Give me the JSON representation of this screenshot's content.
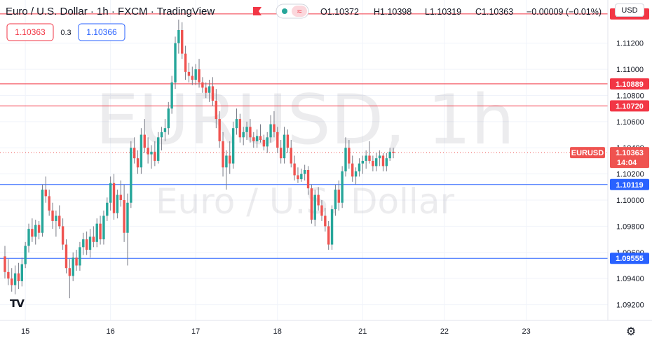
{
  "header": {
    "symbol_title": "Euro / U.S. Dollar · 1h · FXCM · TradingView",
    "ohlc": {
      "open": "O1.10372",
      "high": "H1.10398",
      "low": "L1.10319",
      "close": "C1.10363",
      "change": "−0.00009 (−0.01%)"
    },
    "sell_price": "1.10363",
    "spread": "0.3",
    "buy_price": "1.10366",
    "currency": "USD",
    "indicator_icons": [
      "dot-icon",
      "wave-icon"
    ]
  },
  "watermark": {
    "symbol": "EURUSD, 1h",
    "description": "Euro / U.S. Dollar"
  },
  "colors": {
    "bull": "#26a69a",
    "bear": "#ef5350",
    "wick": "#787b86",
    "resistance": "#f23645",
    "support": "#2962ff",
    "last_price": "#ef5350",
    "grid": "#f0f3fa"
  },
  "chart_data": {
    "type": "candlestick",
    "symbol": "EURUSD",
    "timeframe": "1h",
    "ylim": [
      1.0908,
      1.1153
    ],
    "y_ticks": [
      1.092,
      1.094,
      1.096,
      1.098,
      1.1,
      1.102,
      1.104,
      1.106,
      1.108,
      1.11,
      1.112
    ],
    "y_tick_labels": [
      "1.09200",
      "1.09400",
      "1.09600",
      "1.09800",
      "1.10000",
      "1.10200",
      "1.10400",
      "1.10600",
      "1.10800",
      "1.11000",
      "1.11200"
    ],
    "x_labels": [
      "15",
      "16",
      "17",
      "18",
      "21",
      "22",
      "23"
    ],
    "x_label_bar_index": [
      6,
      31,
      56,
      80,
      105,
      129,
      153
    ],
    "horizontal_lines": [
      {
        "value": 1.11424,
        "label": "1.11424",
        "kind": "resistance"
      },
      {
        "value": 1.10889,
        "label": "1.10889",
        "kind": "resistance"
      },
      {
        "value": 1.1072,
        "label": "1.10720",
        "kind": "resistance"
      },
      {
        "value": 1.10119,
        "label": "1.10119",
        "kind": "support"
      },
      {
        "value": 1.09555,
        "label": "1.09555",
        "kind": "support"
      }
    ],
    "last_price": {
      "value": 1.10363,
      "label": "1.10363",
      "symbol": "EURUSD",
      "countdown": "14:04"
    },
    "candles": [
      [
        1.0957,
        1.0965,
        1.094,
        1.0945
      ],
      [
        1.0945,
        1.0955,
        1.0935,
        1.094
      ],
      [
        1.094,
        1.0948,
        1.093,
        1.0935
      ],
      [
        1.0935,
        1.095,
        1.0928,
        1.0944
      ],
      [
        1.0944,
        1.0952,
        1.0932,
        1.0938
      ],
      [
        1.0938,
        1.0956,
        1.0934,
        1.0951
      ],
      [
        1.0951,
        1.0968,
        1.0948,
        1.0965
      ],
      [
        1.0965,
        1.0982,
        1.096,
        1.0978
      ],
      [
        1.0978,
        1.0986,
        1.0968,
        1.0972
      ],
      [
        1.0972,
        1.0985,
        1.0966,
        1.0981
      ],
      [
        1.0981,
        1.0984,
        1.097,
        1.0975
      ],
      [
        1.0975,
        1.1012,
        1.0972,
        1.1008
      ],
      [
        1.1008,
        1.1018,
        1.0998,
        1.1003
      ],
      [
        1.1003,
        1.1008,
        1.0988,
        1.0992
      ],
      [
        1.0992,
        1.0998,
        1.0978,
        1.0984
      ],
      [
        1.0984,
        1.0992,
        1.0972,
        1.0988
      ],
      [
        1.0988,
        1.0996,
        1.0978,
        1.098
      ],
      [
        1.098,
        1.0986,
        1.0962,
        1.0966
      ],
      [
        1.0966,
        1.097,
        1.0944,
        1.0948
      ],
      [
        1.0948,
        1.0955,
        1.0925,
        1.0942
      ],
      [
        1.0942,
        1.096,
        1.0938,
        1.0956
      ],
      [
        1.0956,
        1.0962,
        1.0946,
        1.095
      ],
      [
        1.095,
        1.0968,
        1.0946,
        1.0964
      ],
      [
        1.0964,
        1.0975,
        1.0958,
        1.097
      ],
      [
        1.097,
        1.0976,
        1.0958,
        1.0962
      ],
      [
        1.0962,
        1.0978,
        1.0956,
        1.0972
      ],
      [
        1.0972,
        1.098,
        1.0964,
        1.0968
      ],
      [
        1.0968,
        1.0986,
        1.0964,
        1.0982
      ],
      [
        1.0982,
        1.0988,
        1.0966,
        1.097
      ],
      [
        1.097,
        1.0992,
        1.0966,
        1.0988
      ],
      [
        1.0988,
        1.1002,
        1.0984,
        1.0998
      ],
      [
        1.0998,
        1.1018,
        1.0992,
        1.1013
      ],
      [
        1.1013,
        1.102,
        1.0985,
        1.099
      ],
      [
        1.099,
        1.1008,
        1.0986,
        1.1004
      ],
      [
        1.1004,
        1.1015,
        1.0995,
        1.1
      ],
      [
        1.1,
        1.1012,
        1.0968,
        1.0975
      ],
      [
        1.0975,
        1.1005,
        1.095,
        1.0998
      ],
      [
        1.0998,
        1.1045,
        1.0994,
        1.104
      ],
      [
        1.104,
        1.1048,
        1.1028,
        1.1032
      ],
      [
        1.1032,
        1.1038,
        1.102,
        1.1025
      ],
      [
        1.1025,
        1.1055,
        1.102,
        1.105
      ],
      [
        1.105,
        1.1062,
        1.1036,
        1.104
      ],
      [
        1.104,
        1.1048,
        1.1028,
        1.1035
      ],
      [
        1.1035,
        1.1042,
        1.1024,
        1.1037
      ],
      [
        1.1037,
        1.1045,
        1.1026,
        1.103
      ],
      [
        1.103,
        1.1052,
        1.1028,
        1.1048
      ],
      [
        1.1048,
        1.1056,
        1.1038,
        1.1052
      ],
      [
        1.1052,
        1.1062,
        1.1045,
        1.1055
      ],
      [
        1.1055,
        1.1075,
        1.105,
        1.107
      ],
      [
        1.107,
        1.1095,
        1.1066,
        1.109
      ],
      [
        1.109,
        1.1125,
        1.1085,
        1.112
      ],
      [
        1.112,
        1.1138,
        1.1112,
        1.113
      ],
      [
        1.113,
        1.1136,
        1.1108,
        1.1112
      ],
      [
        1.1112,
        1.1118,
        1.1092,
        1.1098
      ],
      [
        1.1098,
        1.1105,
        1.109,
        1.1095
      ],
      [
        1.1095,
        1.1102,
        1.1088,
        1.1092
      ],
      [
        1.1092,
        1.1104,
        1.1088,
        1.11
      ],
      [
        1.11,
        1.1108,
        1.1086,
        1.109
      ],
      [
        1.109,
        1.1094,
        1.1082,
        1.1086
      ],
      [
        1.1086,
        1.109,
        1.1078,
        1.1082
      ],
      [
        1.1082,
        1.1092,
        1.1075,
        1.1087
      ],
      [
        1.1087,
        1.1094,
        1.1072,
        1.1076
      ],
      [
        1.1076,
        1.1085,
        1.1055,
        1.1062
      ],
      [
        1.1062,
        1.1068,
        1.104,
        1.1045
      ],
      [
        1.1045,
        1.1052,
        1.1018,
        1.1025
      ],
      [
        1.1025,
        1.1038,
        1.1008,
        1.1034
      ],
      [
        1.1034,
        1.1045,
        1.102,
        1.1028
      ],
      [
        1.1028,
        1.106,
        1.1024,
        1.1055
      ],
      [
        1.1055,
        1.107,
        1.105,
        1.1062
      ],
      [
        1.1062,
        1.1066,
        1.1044,
        1.1048
      ],
      [
        1.1048,
        1.1056,
        1.1042,
        1.1052
      ],
      [
        1.1052,
        1.106,
        1.1046,
        1.1056
      ],
      [
        1.1056,
        1.1062,
        1.1044,
        1.1048
      ],
      [
        1.1048,
        1.1052,
        1.104,
        1.1045
      ],
      [
        1.1045,
        1.1054,
        1.104,
        1.1049
      ],
      [
        1.1049,
        1.1058,
        1.1044,
        1.1046
      ],
      [
        1.1046,
        1.105,
        1.1038,
        1.1041
      ],
      [
        1.1041,
        1.1052,
        1.1036,
        1.1048
      ],
      [
        1.1048,
        1.1065,
        1.1044,
        1.1058
      ],
      [
        1.1058,
        1.1068,
        1.1048,
        1.1052
      ],
      [
        1.1052,
        1.1056,
        1.1036,
        1.104
      ],
      [
        1.104,
        1.1046,
        1.1028,
        1.1032
      ],
      [
        1.1032,
        1.1056,
        1.1028,
        1.105
      ],
      [
        1.105,
        1.1054,
        1.1036,
        1.104
      ],
      [
        1.104,
        1.1046,
        1.1025,
        1.1028
      ],
      [
        1.1028,
        1.1034,
        1.1015,
        1.1019
      ],
      [
        1.1019,
        1.1025,
        1.1013,
        1.1016
      ],
      [
        1.1016,
        1.1024,
        1.1014,
        1.102
      ],
      [
        1.102,
        1.1027,
        1.1015,
        1.1023
      ],
      [
        1.1023,
        1.1026,
        1.1004,
        1.1009
      ],
      [
        1.1009,
        1.1012,
        1.0982,
        1.0985
      ],
      [
        1.0985,
        1.1008,
        1.098,
        1.1004
      ],
      [
        1.1004,
        1.101,
        1.0992,
        1.0996
      ],
      [
        1.0996,
        1.1,
        1.0984,
        1.0988
      ],
      [
        1.0988,
        1.0994,
        1.0976,
        1.098
      ],
      [
        1.098,
        1.0984,
        1.0962,
        1.0966
      ],
      [
        1.0966,
        1.0996,
        1.0962,
        1.0993
      ],
      [
        1.0993,
        1.1012,
        1.0988,
        1.1008
      ],
      [
        1.1008,
        1.1015,
        1.0992,
        1.0998
      ],
      [
        1.0998,
        1.1026,
        1.0994,
        1.1022
      ],
      [
        1.1022,
        1.1048,
        1.1018,
        1.104
      ],
      [
        1.104,
        1.1046,
        1.1024,
        1.1028
      ],
      [
        1.1028,
        1.1034,
        1.1014,
        1.1018
      ],
      [
        1.1018,
        1.1025,
        1.1012,
        1.1022
      ],
      [
        1.1022,
        1.1032,
        1.1018,
        1.1028
      ],
      [
        1.1028,
        1.1034,
        1.102,
        1.103
      ],
      [
        1.103,
        1.1038,
        1.1024,
        1.1034
      ],
      [
        1.1034,
        1.1045,
        1.1028,
        1.103
      ],
      [
        1.103,
        1.1034,
        1.1022,
        1.1026
      ],
      [
        1.1026,
        1.1036,
        1.1022,
        1.1032
      ],
      [
        1.1032,
        1.1038,
        1.1026,
        1.1034
      ],
      [
        1.1034,
        1.1036,
        1.1022,
        1.1026
      ],
      [
        1.1026,
        1.1036,
        1.1022,
        1.1032
      ],
      [
        1.1032,
        1.104,
        1.103,
        1.1037
      ],
      [
        1.1037,
        1.104,
        1.1032,
        1.1036
      ]
    ]
  }
}
